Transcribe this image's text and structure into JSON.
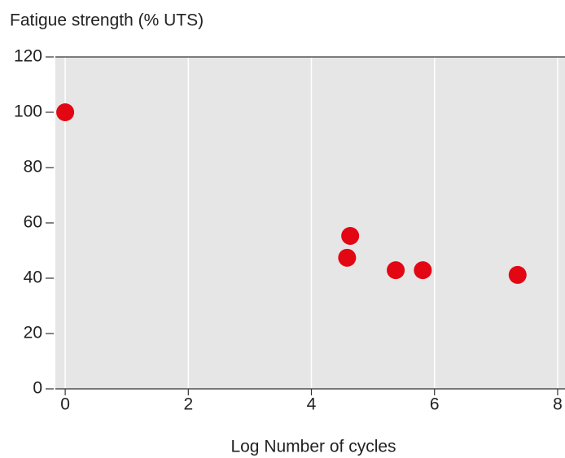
{
  "chart_data": {
    "type": "scatter",
    "ylabel": "Fatigue strength (% UTS)",
    "xlabel": "Log Number of cycles",
    "series": [
      {
        "name": "Fatigue strength",
        "color": "#e30613",
        "x": [
          0,
          4.58,
          4.63,
          5.37,
          5.81,
          7.35
        ],
        "values": [
          100,
          47.4,
          55.3,
          42.9,
          42.9,
          41.2
        ]
      }
    ],
    "xlim": [
      -0.16,
      8.12
    ],
    "xticks": [
      0,
      2,
      4,
      6,
      8
    ],
    "ylim": [
      0,
      120
    ],
    "yticks": [
      0,
      20,
      40,
      60,
      80,
      100,
      120
    ],
    "grid": true
  }
}
